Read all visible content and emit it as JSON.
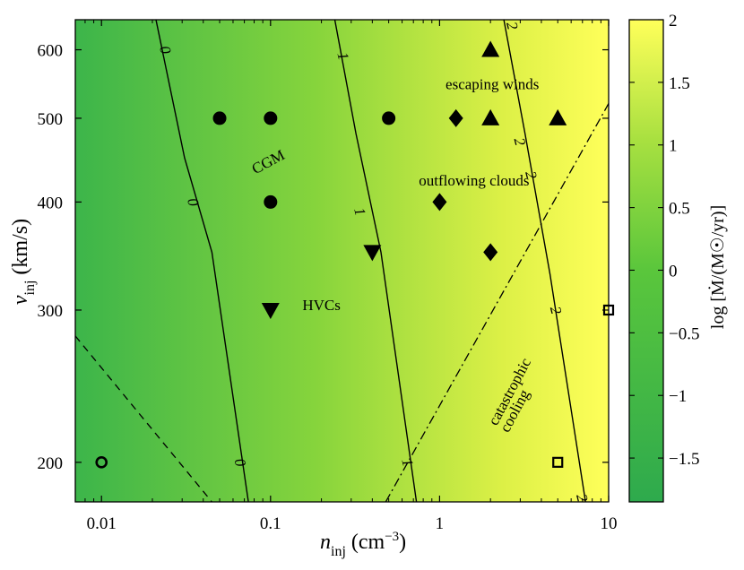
{
  "chart_data": {
    "type": "scatter",
    "x_scale": "log",
    "y_scale": "log",
    "xlim": [
      0.007,
      10
    ],
    "ylim": [
      180,
      650
    ],
    "xlabel": "n",
    "xlabel_sub": "inj",
    "xlabel_units": "(cm",
    "xlabel_units_sup": "−3",
    "xlabel_units_close": ")",
    "ylabel": "v",
    "ylabel_sub": "inj",
    "ylabel_units": "(km/s)",
    "x_ticks": [
      0.01,
      0.1,
      1,
      10
    ],
    "x_tick_labels": [
      "0.01",
      "0.1",
      "1",
      "10"
    ],
    "y_ticks": [
      200,
      300,
      400,
      500,
      600
    ],
    "y_tick_labels": [
      "200",
      "300",
      "400",
      "500",
      "600"
    ],
    "colorbar": {
      "label": "log [Ṁ/(M☉/yr)]",
      "range": [
        -1.85,
        2.0
      ],
      "ticks": [
        2,
        1.5,
        1,
        0.5,
        0,
        -0.5,
        -1,
        -1.5
      ],
      "tick_labels": [
        "2",
        "1.5",
        "1",
        "0.5",
        "0",
        "−0.5",
        "−1",
        "−1.5"
      ],
      "color_low": "#2eaa4d",
      "color_mid": "#7fd23a",
      "color_high": "#ffff5a"
    },
    "contours": [
      {
        "level": 0,
        "label": "0",
        "points": [
          [
            0.021,
            650
          ],
          [
            0.031,
            450
          ],
          [
            0.045,
            350
          ],
          [
            0.074,
            180
          ]
        ],
        "label_at": [
          [
            0.024,
            600
          ],
          [
            0.035,
            400
          ],
          [
            0.0665,
            200
          ]
        ]
      },
      {
        "level": 1,
        "label": "1",
        "points": [
          [
            0.24,
            650
          ],
          [
            0.32,
            480
          ],
          [
            0.45,
            350
          ],
          [
            0.73,
            180
          ]
        ],
        "label_at": [
          [
            0.27,
            590
          ],
          [
            0.34,
            390
          ],
          [
            0.65,
            200
          ]
        ]
      },
      {
        "level": 2,
        "label": "2",
        "points": [
          [
            2.4,
            650
          ],
          [
            3.2,
            480
          ],
          [
            4.5,
            330
          ],
          [
            7.3,
            180
          ]
        ],
        "label_at": [
          [
            2.7,
            640
          ],
          [
            3.0,
            470
          ],
          [
            3.5,
            430
          ],
          [
            4.9,
            300
          ],
          [
            7.0,
            182
          ]
        ]
      }
    ],
    "boundary_lines": [
      {
        "style": "dashed",
        "points": [
          [
            0.007,
            280
          ],
          [
            0.045,
            180
          ]
        ]
      },
      {
        "style": "dashdot",
        "points": [
          [
            0.48,
            180
          ],
          [
            10,
            520
          ]
        ]
      }
    ],
    "annotations": [
      {
        "text": "escaping winds",
        "x": 2.05,
        "y": 540,
        "rotate": 0
      },
      {
        "text": "CGM",
        "x": 0.1,
        "y": 440,
        "rotate": -28
      },
      {
        "text": "outflowing clouds",
        "x": 1.6,
        "y": 418,
        "rotate": 0
      },
      {
        "text": "HVCs",
        "x": 0.2,
        "y": 300,
        "rotate": 0
      },
      {
        "text": "catastrophic",
        "x": 2.75,
        "y": 240,
        "rotate": -62
      },
      {
        "text": "cooling",
        "x": 2.95,
        "y": 228,
        "rotate": -62
      }
    ],
    "series": [
      {
        "name": "CGM",
        "marker": "circle",
        "points": [
          [
            0.05,
            500
          ],
          [
            0.1,
            500
          ],
          [
            0.5,
            500
          ],
          [
            0.1,
            400
          ]
        ]
      },
      {
        "name": "outflowing clouds",
        "marker": "diamond",
        "points": [
          [
            1.25,
            500
          ],
          [
            1,
            400
          ],
          [
            2,
            350
          ]
        ]
      },
      {
        "name": "escaping winds",
        "marker": "triangle-up",
        "points": [
          [
            2,
            600
          ],
          [
            2,
            500
          ],
          [
            5,
            500
          ]
        ]
      },
      {
        "name": "HVCs",
        "marker": "triangle-down",
        "points": [
          [
            0.1,
            300
          ],
          [
            0.4,
            350
          ]
        ]
      },
      {
        "name": "open-circle",
        "marker": "open-circle",
        "points": [
          [
            0.01,
            200
          ]
        ]
      },
      {
        "name": "open-square",
        "marker": "open-square",
        "points": [
          [
            5,
            200
          ],
          [
            10,
            300
          ]
        ]
      }
    ]
  }
}
